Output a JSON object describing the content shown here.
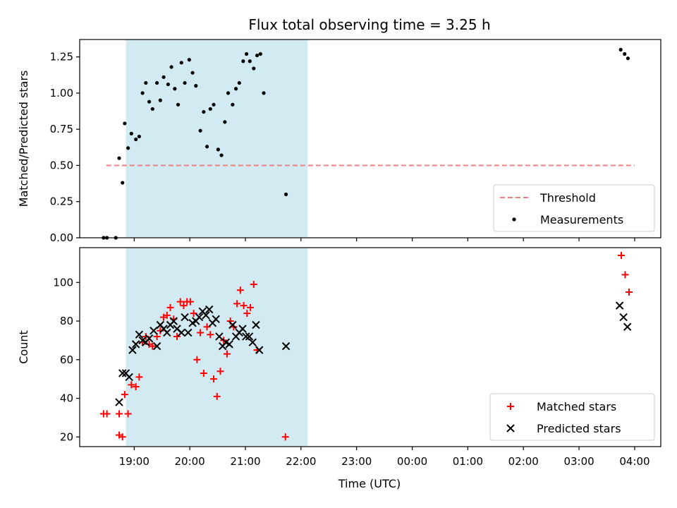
{
  "chart_data": {
    "title": "Flux total observing time = 3.25 h",
    "xlabel": "Time (UTC)",
    "x_unit": "hours past 19:00 UTC",
    "x_ticks": [
      {
        "x": 0,
        "label": "19:00"
      },
      {
        "x": 1,
        "label": "20:00"
      },
      {
        "x": 2,
        "label": "21:00"
      },
      {
        "x": 3,
        "label": "22:00"
      },
      {
        "x": 4,
        "label": "23:00"
      },
      {
        "x": 5,
        "label": "00:00"
      },
      {
        "x": 6,
        "label": "01:00"
      },
      {
        "x": 7,
        "label": "02:00"
      },
      {
        "x": 8,
        "label": "03:00"
      },
      {
        "x": 9,
        "label": "04:00"
      }
    ],
    "xlim": [
      -0.98,
      9.47
    ],
    "shaded_span": {
      "x0": -0.15,
      "x1": 3.12,
      "color": "#add8e6"
    },
    "panels": [
      {
        "type": "scatter",
        "ylabel": "Matched/Predicted stars",
        "ylim": [
          0,
          1.37
        ],
        "y_ticks": [
          0,
          0.25,
          0.5,
          0.75,
          1.0,
          1.25
        ],
        "y_tick_labels": [
          "0.00",
          "0.25",
          "0.50",
          "0.75",
          "1.00",
          "1.25"
        ],
        "threshold": {
          "name": "Threshold",
          "y": 0.5,
          "x0": -0.5,
          "x1": 9.0,
          "color": "#f08080"
        },
        "legend": {
          "position": "lower-right",
          "entries": [
            "Threshold",
            "Measurements"
          ]
        },
        "series": [
          {
            "name": "Measurements",
            "marker": "dot",
            "color": "#000000",
            "points": [
              [
                -0.55,
                0.0
              ],
              [
                -0.49,
                0.0
              ],
              [
                -0.33,
                0.0
              ],
              [
                -0.27,
                0.55
              ],
              [
                -0.21,
                0.38
              ],
              [
                -0.17,
                0.79
              ],
              [
                -0.11,
                0.62
              ],
              [
                -0.05,
                0.72
              ],
              [
                0.03,
                0.68
              ],
              [
                0.09,
                0.7
              ],
              [
                0.15,
                1.0
              ],
              [
                0.21,
                1.07
              ],
              [
                0.27,
                0.94
              ],
              [
                0.33,
                0.89
              ],
              [
                0.41,
                1.07
              ],
              [
                0.47,
                0.95
              ],
              [
                0.53,
                1.11
              ],
              [
                0.61,
                1.06
              ],
              [
                0.67,
                1.18
              ],
              [
                0.73,
                1.03
              ],
              [
                0.79,
                0.92
              ],
              [
                0.85,
                1.21
              ],
              [
                0.91,
                1.07
              ],
              [
                0.99,
                1.23
              ],
              [
                1.05,
                1.14
              ],
              [
                1.11,
                1.05
              ],
              [
                1.19,
                0.74
              ],
              [
                1.25,
                0.87
              ],
              [
                1.31,
                0.63
              ],
              [
                1.37,
                0.89
              ],
              [
                1.43,
                0.92
              ],
              [
                1.51,
                0.61
              ],
              [
                1.57,
                0.57
              ],
              [
                1.63,
                0.8
              ],
              [
                1.69,
                1.0
              ],
              [
                1.77,
                0.92
              ],
              [
                1.83,
                1.03
              ],
              [
                1.89,
                1.07
              ],
              [
                1.96,
                1.22
              ],
              [
                2.02,
                1.27
              ],
              [
                2.08,
                1.22
              ],
              [
                2.15,
                1.17
              ],
              [
                2.21,
                1.26
              ],
              [
                2.27,
                1.27
              ],
              [
                2.33,
                1.0
              ],
              [
                2.73,
                0.3
              ],
              [
                8.75,
                1.3
              ],
              [
                8.82,
                1.27
              ],
              [
                8.88,
                1.24
              ]
            ]
          }
        ]
      },
      {
        "type": "scatter",
        "ylabel": "Count",
        "ylim": [
          15,
          118
        ],
        "y_ticks": [
          20,
          40,
          60,
          80,
          100
        ],
        "y_tick_labels": [
          "20",
          "40",
          "60",
          "80",
          "100"
        ],
        "legend": {
          "position": "lower-right",
          "entries": [
            "Matched stars",
            "Predicted stars"
          ]
        },
        "series": [
          {
            "name": "Matched stars",
            "marker": "plus",
            "color": "#ff0000",
            "points": [
              [
                -0.55,
                32
              ],
              [
                -0.49,
                32
              ],
              [
                -0.27,
                21
              ],
              [
                -0.21,
                20
              ],
              [
                -0.27,
                32
              ],
              [
                -0.17,
                42
              ],
              [
                -0.11,
                32
              ],
              [
                -0.05,
                47
              ],
              [
                0.03,
                46
              ],
              [
                0.09,
                51
              ],
              [
                0.15,
                69
              ],
              [
                0.21,
                72
              ],
              [
                0.27,
                68
              ],
              [
                0.33,
                67
              ],
              [
                0.41,
                72
              ],
              [
                0.47,
                75
              ],
              [
                0.53,
                82
              ],
              [
                0.59,
                83
              ],
              [
                0.65,
                87
              ],
              [
                0.71,
                81
              ],
              [
                0.77,
                72
              ],
              [
                0.83,
                90
              ],
              [
                0.89,
                88
              ],
              [
                0.95,
                90
              ],
              [
                1.01,
                90
              ],
              [
                1.07,
                84
              ],
              [
                1.13,
                60
              ],
              [
                1.19,
                74
              ],
              [
                1.25,
                53
              ],
              [
                1.31,
                77
              ],
              [
                1.37,
                73
              ],
              [
                1.43,
                50
              ],
              [
                1.49,
                41
              ],
              [
                1.55,
                54
              ],
              [
                1.61,
                70
              ],
              [
                1.67,
                63
              ],
              [
                1.73,
                80
              ],
              [
                1.79,
                77
              ],
              [
                1.85,
                89
              ],
              [
                1.91,
                96
              ],
              [
                1.97,
                88
              ],
              [
                2.03,
                84
              ],
              [
                2.09,
                87
              ],
              [
                2.15,
                99
              ],
              [
                2.21,
                65
              ],
              [
                2.72,
                20
              ],
              [
                8.76,
                114
              ],
              [
                8.83,
                104
              ],
              [
                8.9,
                95
              ]
            ]
          },
          {
            "name": "Predicted stars",
            "marker": "x",
            "color": "#000000",
            "points": [
              [
                -0.27,
                38
              ],
              [
                -0.21,
                53
              ],
              [
                -0.15,
                53
              ],
              [
                -0.09,
                51
              ],
              [
                -0.03,
                65
              ],
              [
                0.03,
                68
              ],
              [
                0.09,
                73
              ],
              [
                0.15,
                70
              ],
              [
                0.21,
                69
              ],
              [
                0.27,
                71
              ],
              [
                0.35,
                75
              ],
              [
                0.41,
                67
              ],
              [
                0.47,
                78
              ],
              [
                0.53,
                76
              ],
              [
                0.59,
                74
              ],
              [
                0.65,
                78
              ],
              [
                0.71,
                80
              ],
              [
                0.77,
                76
              ],
              [
                0.85,
                74
              ],
              [
                0.91,
                82
              ],
              [
                0.97,
                74
              ],
              [
                1.05,
                79
              ],
              [
                1.11,
                80
              ],
              [
                1.17,
                82
              ],
              [
                1.23,
                85
              ],
              [
                1.29,
                83
              ],
              [
                1.35,
                86
              ],
              [
                1.41,
                79
              ],
              [
                1.47,
                81
              ],
              [
                1.53,
                72
              ],
              [
                1.59,
                67
              ],
              [
                1.65,
                69
              ],
              [
                1.71,
                68
              ],
              [
                1.77,
                78
              ],
              [
                1.83,
                72
              ],
              [
                1.89,
                74
              ],
              [
                1.95,
                76
              ],
              [
                2.01,
                72
              ],
              [
                2.07,
                72
              ],
              [
                2.13,
                69
              ],
              [
                2.19,
                78
              ],
              [
                2.25,
                65
              ],
              [
                2.73,
                67
              ],
              [
                8.73,
                88
              ],
              [
                8.8,
                82
              ],
              [
                8.87,
                77
              ]
            ]
          }
        ]
      }
    ]
  }
}
